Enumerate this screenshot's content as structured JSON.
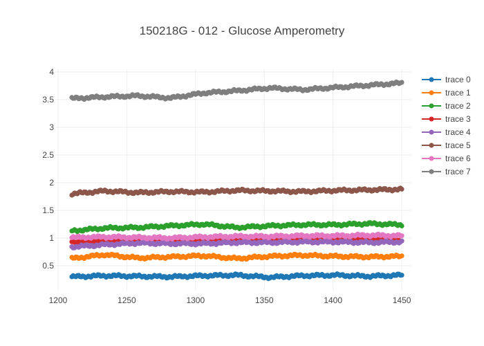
{
  "chart_data": {
    "type": "scatter",
    "mode": "lines+markers",
    "title": "150218G - 012 - Glucose Amperometry",
    "xlabel": "",
    "ylabel": "",
    "xlim": [
      1198,
      1457
    ],
    "ylim": [
      0.05,
      4.05
    ],
    "x_ticks": [
      1200,
      1250,
      1300,
      1350,
      1400,
      1450
    ],
    "y_ticks": [
      0.5,
      1,
      1.5,
      2,
      2.5,
      3,
      3.5,
      4
    ],
    "x_range": [
      1210,
      1450
    ],
    "grid": true,
    "legend_position": "right",
    "series": [
      {
        "name": "trace 0",
        "color": "#1f77b4",
        "values": [
          0.3,
          0.32,
          0.31,
          0.3,
          0.32,
          0.33,
          0.29,
          0.32,
          0.33,
          0.31,
          0.33
        ]
      },
      {
        "name": "trace 1",
        "color": "#ff7f0e",
        "values": [
          0.63,
          0.7,
          0.64,
          0.66,
          0.68,
          0.63,
          0.67,
          0.69,
          0.67,
          0.66,
          0.67
        ]
      },
      {
        "name": "trace 2",
        "color": "#2ca02c",
        "values": [
          1.13,
          1.18,
          1.19,
          1.22,
          1.25,
          1.19,
          1.22,
          1.24,
          1.24,
          1.26,
          1.24
        ]
      },
      {
        "name": "trace 3",
        "color": "#d62728",
        "values": [
          0.93,
          0.95,
          0.96,
          0.95,
          0.97,
          0.96,
          0.96,
          0.97,
          0.98,
          0.98,
          0.96
        ]
      },
      {
        "name": "trace 4",
        "color": "#9467bd",
        "values": [
          0.84,
          0.88,
          0.91,
          0.9,
          0.9,
          0.92,
          0.92,
          0.93,
          0.93,
          0.92,
          0.93
        ]
      },
      {
        "name": "trace 5",
        "color": "#8c564b",
        "values": [
          1.8,
          1.85,
          1.82,
          1.84,
          1.83,
          1.86,
          1.85,
          1.84,
          1.86,
          1.87,
          1.88
        ]
      },
      {
        "name": "trace 6",
        "color": "#e377c2",
        "values": [
          1.01,
          1.02,
          1.01,
          1.0,
          1.02,
          1.03,
          1.03,
          1.04,
          1.04,
          1.05,
          1.04
        ]
      },
      {
        "name": "trace 7",
        "color": "#7f7f7f",
        "values": [
          3.52,
          3.55,
          3.57,
          3.53,
          3.62,
          3.66,
          3.71,
          3.68,
          3.72,
          3.76,
          3.8
        ]
      }
    ]
  }
}
